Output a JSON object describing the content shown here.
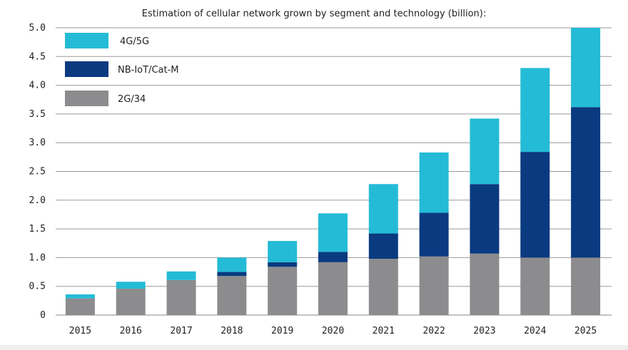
{
  "chart_data": {
    "type": "bar",
    "stacked": true,
    "title": "Estimation of cellular network grown by segment and technology (billion):",
    "categories": [
      "2015",
      "2016",
      "2017",
      "2018",
      "2019",
      "2020",
      "2021",
      "2022",
      "2023",
      "2024",
      "2025"
    ],
    "series": [
      {
        "name": "2G/34",
        "color": "#8c8c8e",
        "values": [
          0.29,
          0.46,
          0.61,
          0.68,
          0.84,
          0.92,
          0.98,
          1.02,
          1.07,
          1.0,
          1.0
        ]
      },
      {
        "name": "NB-IoT/Cat-M",
        "color": "#0a3a80",
        "values": [
          0.0,
          0.0,
          0.0,
          0.07,
          0.08,
          0.18,
          0.44,
          0.76,
          1.21,
          1.84,
          2.62
        ]
      },
      {
        "name": "4G/5G",
        "color": "#24bbd6",
        "values": [
          0.07,
          0.12,
          0.15,
          0.25,
          0.37,
          0.67,
          0.86,
          1.05,
          1.14,
          1.46,
          1.38
        ]
      }
    ],
    "ylim": [
      0,
      5.0
    ],
    "yticks": [
      "0",
      "0.5",
      "1.0",
      "1.5",
      "2.0",
      "2.5",
      "3.0",
      "3.5",
      "4.0",
      "4.5",
      "5.0"
    ],
    "legend_order": [
      "4G/5G",
      "NB-IoT/Cat-M",
      "2G/34"
    ],
    "legend_position": "top-left",
    "grid": true
  }
}
